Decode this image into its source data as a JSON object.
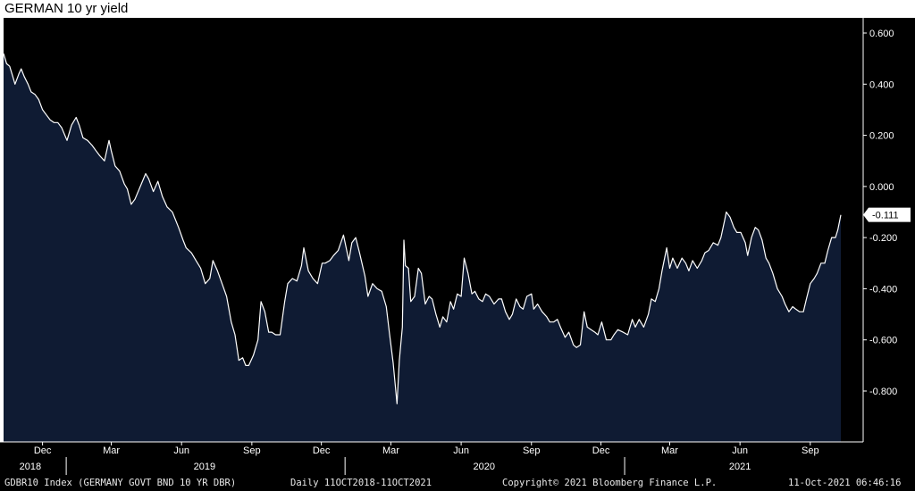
{
  "title": "GERMAN 10 yr yield",
  "chart_data": {
    "type": "area",
    "title": "GERMAN 10 yr yield",
    "ylim": [
      -1.0,
      0.65
    ],
    "y_ticks": [
      "0.600",
      "0.400",
      "0.200",
      "0.000",
      "-0.200",
      "-0.400",
      "-0.600",
      "-0.800"
    ],
    "y_tick_values": [
      0.6,
      0.4,
      0.2,
      0.0,
      -0.2,
      -0.4,
      -0.6,
      -0.8
    ],
    "x_start": "2018-10-11",
    "x_end": "2021-10-11",
    "month_labels": [
      {
        "label": "Dec",
        "date": "2018-12-01"
      },
      {
        "label": "Mar",
        "date": "2019-03-01"
      },
      {
        "label": "Jun",
        "date": "2019-06-01"
      },
      {
        "label": "Sep",
        "date": "2019-09-01"
      },
      {
        "label": "Dec",
        "date": "2019-12-01"
      },
      {
        "label": "Mar",
        "date": "2020-03-01"
      },
      {
        "label": "Jun",
        "date": "2020-06-01"
      },
      {
        "label": "Sep",
        "date": "2020-09-01"
      },
      {
        "label": "Dec",
        "date": "2020-12-01"
      },
      {
        "label": "Mar",
        "date": "2021-03-01"
      },
      {
        "label": "Jun",
        "date": "2021-06-01"
      },
      {
        "label": "Sep",
        "date": "2021-09-01"
      }
    ],
    "year_labels": [
      {
        "label": "2018",
        "date": "2018-11-15"
      },
      {
        "label": "2019",
        "date": "2019-07-01"
      },
      {
        "label": "2020",
        "date": "2020-07-01"
      },
      {
        "label": "2021",
        "date": "2021-06-01"
      }
    ],
    "year_dividers": [
      "2019-01-01",
      "2020-01-01",
      "2021-01-01"
    ],
    "last_value_label": "-0.111",
    "last_value": -0.111,
    "colors": {
      "background": "#000000",
      "area": "#0f1b33",
      "line": "#ffffff",
      "text": "#ffffff"
    },
    "series": [
      {
        "points": [
          [
            "2018-10-11",
            0.52
          ],
          [
            "2018-10-15",
            0.48
          ],
          [
            "2018-10-19",
            0.47
          ],
          [
            "2018-10-23",
            0.43
          ],
          [
            "2018-10-26",
            0.4
          ],
          [
            "2018-10-31",
            0.44
          ],
          [
            "2018-11-03",
            0.46
          ],
          [
            "2018-11-07",
            0.43
          ],
          [
            "2018-11-12",
            0.4
          ],
          [
            "2018-11-16",
            0.37
          ],
          [
            "2018-11-21",
            0.36
          ],
          [
            "2018-11-26",
            0.34
          ],
          [
            "2018-12-01",
            0.3
          ],
          [
            "2018-12-06",
            0.28
          ],
          [
            "2018-12-11",
            0.26
          ],
          [
            "2018-12-16",
            0.25
          ],
          [
            "2018-12-21",
            0.25
          ],
          [
            "2018-12-26",
            0.23
          ],
          [
            "2019-01-02",
            0.18
          ],
          [
            "2019-01-08",
            0.24
          ],
          [
            "2019-01-14",
            0.27
          ],
          [
            "2019-01-18",
            0.24
          ],
          [
            "2019-01-23",
            0.19
          ],
          [
            "2019-01-29",
            0.18
          ],
          [
            "2019-02-04",
            0.16
          ],
          [
            "2019-02-09",
            0.14
          ],
          [
            "2019-02-14",
            0.12
          ],
          [
            "2019-02-20",
            0.1
          ],
          [
            "2019-02-26",
            0.18
          ],
          [
            "2019-03-01",
            0.14
          ],
          [
            "2019-03-06",
            0.08
          ],
          [
            "2019-03-12",
            0.06
          ],
          [
            "2019-03-18",
            0.01
          ],
          [
            "2019-03-22",
            -0.01
          ],
          [
            "2019-03-27",
            -0.07
          ],
          [
            "2019-04-01",
            -0.05
          ],
          [
            "2019-04-08",
            0.0
          ],
          [
            "2019-04-15",
            0.05
          ],
          [
            "2019-04-19",
            0.03
          ],
          [
            "2019-04-25",
            -0.02
          ],
          [
            "2019-05-01",
            0.02
          ],
          [
            "2019-05-07",
            -0.04
          ],
          [
            "2019-05-13",
            -0.08
          ],
          [
            "2019-05-20",
            -0.1
          ],
          [
            "2019-05-28",
            -0.16
          ],
          [
            "2019-06-03",
            -0.21
          ],
          [
            "2019-06-07",
            -0.24
          ],
          [
            "2019-06-14",
            -0.26
          ],
          [
            "2019-06-20",
            -0.29
          ],
          [
            "2019-06-26",
            -0.32
          ],
          [
            "2019-07-02",
            -0.38
          ],
          [
            "2019-07-08",
            -0.36
          ],
          [
            "2019-07-12",
            -0.29
          ],
          [
            "2019-07-18",
            -0.33
          ],
          [
            "2019-07-24",
            -0.38
          ],
          [
            "2019-07-30",
            -0.43
          ],
          [
            "2019-08-05",
            -0.53
          ],
          [
            "2019-08-10",
            -0.58
          ],
          [
            "2019-08-15",
            -0.68
          ],
          [
            "2019-08-20",
            -0.67
          ],
          [
            "2019-08-24",
            -0.7
          ],
          [
            "2019-08-28",
            -0.7
          ],
          [
            "2019-09-03",
            -0.66
          ],
          [
            "2019-09-09",
            -0.6
          ],
          [
            "2019-09-13",
            -0.45
          ],
          [
            "2019-09-18",
            -0.49
          ],
          [
            "2019-09-23",
            -0.57
          ],
          [
            "2019-09-27",
            -0.57
          ],
          [
            "2019-10-02",
            -0.58
          ],
          [
            "2019-10-08",
            -0.58
          ],
          [
            "2019-10-14",
            -0.45
          ],
          [
            "2019-10-18",
            -0.38
          ],
          [
            "2019-10-24",
            -0.36
          ],
          [
            "2019-10-30",
            -0.37
          ],
          [
            "2019-11-05",
            -0.31
          ],
          [
            "2019-11-08",
            -0.24
          ],
          [
            "2019-11-14",
            -0.33
          ],
          [
            "2019-11-20",
            -0.36
          ],
          [
            "2019-11-26",
            -0.38
          ],
          [
            "2019-12-02",
            -0.3
          ],
          [
            "2019-12-06",
            -0.3
          ],
          [
            "2019-12-12",
            -0.29
          ],
          [
            "2019-12-17",
            -0.27
          ],
          [
            "2019-12-23",
            -0.25
          ],
          [
            "2019-12-30",
            -0.19
          ],
          [
            "2020-01-06",
            -0.29
          ],
          [
            "2020-01-10",
            -0.22
          ],
          [
            "2020-01-15",
            -0.2
          ],
          [
            "2020-01-20",
            -0.26
          ],
          [
            "2020-01-27",
            -0.35
          ],
          [
            "2020-01-31",
            -0.43
          ],
          [
            "2020-02-06",
            -0.38
          ],
          [
            "2020-02-12",
            -0.4
          ],
          [
            "2020-02-18",
            -0.41
          ],
          [
            "2020-02-24",
            -0.47
          ],
          [
            "2020-02-28",
            -0.57
          ],
          [
            "2020-03-04",
            -0.69
          ],
          [
            "2020-03-09",
            -0.85
          ],
          [
            "2020-03-12",
            -0.68
          ],
          [
            "2020-03-16",
            -0.55
          ],
          [
            "2020-03-18",
            -0.21
          ],
          [
            "2020-03-20",
            -0.31
          ],
          [
            "2020-03-24",
            -0.32
          ],
          [
            "2020-03-27",
            -0.45
          ],
          [
            "2020-04-01",
            -0.43
          ],
          [
            "2020-04-06",
            -0.32
          ],
          [
            "2020-04-10",
            -0.34
          ],
          [
            "2020-04-15",
            -0.46
          ],
          [
            "2020-04-20",
            -0.43
          ],
          [
            "2020-04-24",
            -0.44
          ],
          [
            "2020-04-29",
            -0.5
          ],
          [
            "2020-05-04",
            -0.55
          ],
          [
            "2020-05-08",
            -0.51
          ],
          [
            "2020-05-13",
            -0.53
          ],
          [
            "2020-05-18",
            -0.45
          ],
          [
            "2020-05-22",
            -0.48
          ],
          [
            "2020-05-27",
            -0.42
          ],
          [
            "2020-06-01",
            -0.43
          ],
          [
            "2020-06-05",
            -0.28
          ],
          [
            "2020-06-10",
            -0.34
          ],
          [
            "2020-06-15",
            -0.42
          ],
          [
            "2020-06-19",
            -0.41
          ],
          [
            "2020-06-24",
            -0.44
          ],
          [
            "2020-06-29",
            -0.45
          ],
          [
            "2020-07-03",
            -0.42
          ],
          [
            "2020-07-08",
            -0.43
          ],
          [
            "2020-07-14",
            -0.46
          ],
          [
            "2020-07-20",
            -0.44
          ],
          [
            "2020-07-24",
            -0.44
          ],
          [
            "2020-07-29",
            -0.49
          ],
          [
            "2020-08-03",
            -0.52
          ],
          [
            "2020-08-07",
            -0.5
          ],
          [
            "2020-08-12",
            -0.44
          ],
          [
            "2020-08-17",
            -0.47
          ],
          [
            "2020-08-21",
            -0.48
          ],
          [
            "2020-08-26",
            -0.43
          ],
          [
            "2020-09-01",
            -0.42
          ],
          [
            "2020-09-04",
            -0.48
          ],
          [
            "2020-09-09",
            -0.46
          ],
          [
            "2020-09-15",
            -0.49
          ],
          [
            "2020-09-21",
            -0.51
          ],
          [
            "2020-09-25",
            -0.53
          ],
          [
            "2020-09-30",
            -0.53
          ],
          [
            "2020-10-05",
            -0.52
          ],
          [
            "2020-10-09",
            -0.55
          ],
          [
            "2020-10-15",
            -0.59
          ],
          [
            "2020-10-20",
            -0.57
          ],
          [
            "2020-10-26",
            -0.62
          ],
          [
            "2020-10-30",
            -0.63
          ],
          [
            "2020-11-04",
            -0.62
          ],
          [
            "2020-11-09",
            -0.49
          ],
          [
            "2020-11-13",
            -0.55
          ],
          [
            "2020-11-18",
            -0.56
          ],
          [
            "2020-11-23",
            -0.57
          ],
          [
            "2020-11-27",
            -0.58
          ],
          [
            "2020-12-02",
            -0.53
          ],
          [
            "2020-12-08",
            -0.6
          ],
          [
            "2020-12-14",
            -0.6
          ],
          [
            "2020-12-18",
            -0.58
          ],
          [
            "2020-12-23",
            -0.56
          ],
          [
            "2020-12-30",
            -0.57
          ],
          [
            "2021-01-05",
            -0.58
          ],
          [
            "2021-01-11",
            -0.52
          ],
          [
            "2021-01-15",
            -0.55
          ],
          [
            "2021-01-20",
            -0.52
          ],
          [
            "2021-01-26",
            -0.55
          ],
          [
            "2021-02-01",
            -0.5
          ],
          [
            "2021-02-05",
            -0.44
          ],
          [
            "2021-02-10",
            -0.45
          ],
          [
            "2021-02-15",
            -0.4
          ],
          [
            "2021-02-19",
            -0.33
          ],
          [
            "2021-02-25",
            -0.24
          ],
          [
            "2021-03-01",
            -0.32
          ],
          [
            "2021-03-05",
            -0.28
          ],
          [
            "2021-03-11",
            -0.32
          ],
          [
            "2021-03-17",
            -0.28
          ],
          [
            "2021-03-22",
            -0.3
          ],
          [
            "2021-03-26",
            -0.33
          ],
          [
            "2021-03-31",
            -0.29
          ],
          [
            "2021-04-06",
            -0.32
          ],
          [
            "2021-04-12",
            -0.29
          ],
          [
            "2021-04-16",
            -0.26
          ],
          [
            "2021-04-21",
            -0.25
          ],
          [
            "2021-04-27",
            -0.22
          ],
          [
            "2021-05-03",
            -0.23
          ],
          [
            "2021-05-07",
            -0.2
          ],
          [
            "2021-05-12",
            -0.13
          ],
          [
            "2021-05-14",
            -0.1
          ],
          [
            "2021-05-19",
            -0.12
          ],
          [
            "2021-05-24",
            -0.16
          ],
          [
            "2021-05-28",
            -0.18
          ],
          [
            "2021-06-02",
            -0.18
          ],
          [
            "2021-06-08",
            -0.22
          ],
          [
            "2021-06-11",
            -0.27
          ],
          [
            "2021-06-16",
            -0.2
          ],
          [
            "2021-06-21",
            -0.16
          ],
          [
            "2021-06-25",
            -0.17
          ],
          [
            "2021-06-30",
            -0.21
          ],
          [
            "2021-07-05",
            -0.28
          ],
          [
            "2021-07-09",
            -0.3
          ],
          [
            "2021-07-14",
            -0.34
          ],
          [
            "2021-07-20",
            -0.4
          ],
          [
            "2021-07-26",
            -0.43
          ],
          [
            "2021-07-30",
            -0.46
          ],
          [
            "2021-08-04",
            -0.49
          ],
          [
            "2021-08-09",
            -0.47
          ],
          [
            "2021-08-13",
            -0.48
          ],
          [
            "2021-08-18",
            -0.49
          ],
          [
            "2021-08-23",
            -0.49
          ],
          [
            "2021-08-27",
            -0.44
          ],
          [
            "2021-09-01",
            -0.38
          ],
          [
            "2021-09-06",
            -0.36
          ],
          [
            "2021-09-10",
            -0.34
          ],
          [
            "2021-09-15",
            -0.3
          ],
          [
            "2021-09-20",
            -0.3
          ],
          [
            "2021-09-24",
            -0.25
          ],
          [
            "2021-09-29",
            -0.2
          ],
          [
            "2021-10-04",
            -0.2
          ],
          [
            "2021-10-07",
            -0.17
          ],
          [
            "2021-10-11",
            -0.111
          ]
        ]
      }
    ]
  },
  "footer": {
    "left": "GDBR10 Index (GERMANY GOVT BND 10 YR DBR)",
    "middle": "Daily 11OCT2018-11OCT2021",
    "right": "Copyright© 2021 Bloomberg Finance L.P.",
    "timestamp": "11-Oct-2021 06:46:16"
  }
}
